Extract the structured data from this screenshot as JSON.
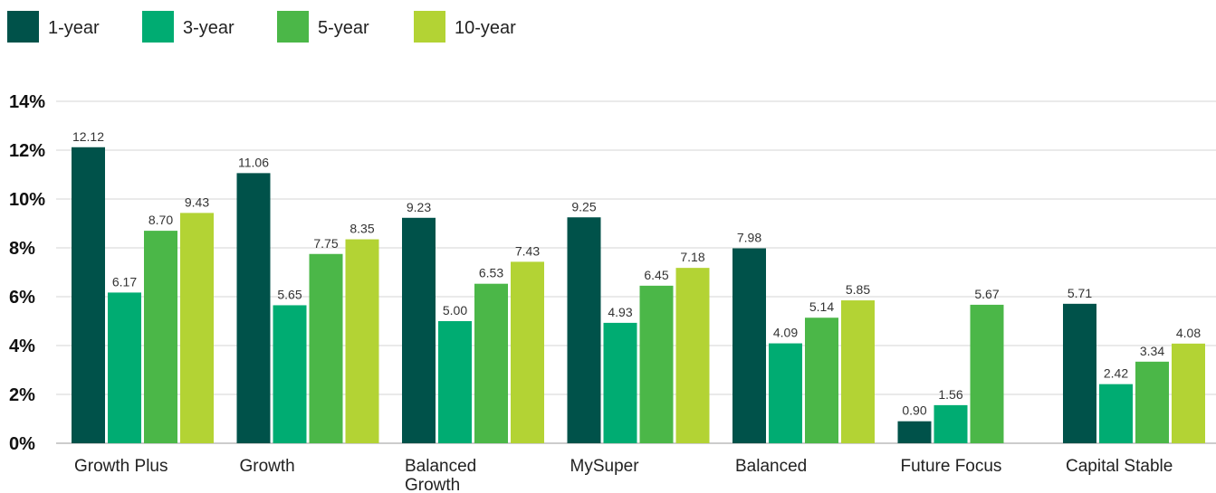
{
  "chart_data": {
    "type": "bar",
    "categories": [
      "Growth Plus",
      "Growth",
      "Balanced Growth",
      "MySuper",
      "Balanced",
      "Future Focus",
      "Capital Stable"
    ],
    "category_lines": [
      [
        "Growth Plus"
      ],
      [
        "Growth"
      ],
      [
        "Balanced",
        "Growth"
      ],
      [
        "MySuper"
      ],
      [
        "Balanced"
      ],
      [
        "Future Focus"
      ],
      [
        "Capital Stable"
      ]
    ],
    "series": [
      {
        "name": "1-year",
        "color": "#00524a",
        "values": [
          12.12,
          11.06,
          9.23,
          9.25,
          7.98,
          0.9,
          5.71
        ],
        "labels": [
          "12.12",
          "11.06",
          "9.23",
          "9.25",
          "7.98",
          "0.90",
          "5.71"
        ]
      },
      {
        "name": "3-year",
        "color": "#00ac72",
        "values": [
          6.17,
          5.65,
          5.0,
          4.93,
          4.09,
          1.56,
          2.42
        ],
        "labels": [
          "6.17",
          "5.65",
          "5.00",
          "4.93",
          "4.09",
          "1.56",
          "2.42"
        ]
      },
      {
        "name": "5-year",
        "color": "#4bb748",
        "values": [
          8.7,
          7.75,
          6.53,
          6.45,
          5.14,
          5.67,
          3.34
        ],
        "labels": [
          "8.70",
          "7.75",
          "6.53",
          "6.45",
          "5.14",
          "5.67",
          "3.34"
        ]
      },
      {
        "name": "10-year",
        "color": "#b3d334",
        "values": [
          9.43,
          8.35,
          7.43,
          7.18,
          5.85,
          null,
          4.08
        ],
        "labels": [
          "9.43",
          "8.35",
          "7.43",
          "7.18",
          "5.85",
          "",
          "4.08"
        ]
      }
    ],
    "yticks": [
      "0%",
      "2%",
      "4%",
      "6%",
      "8%",
      "10%",
      "12%",
      "14%"
    ],
    "ylim": [
      0,
      14
    ],
    "grid": true,
    "legend_position": "top-left",
    "title": "",
    "xlabel": "",
    "ylabel": ""
  }
}
